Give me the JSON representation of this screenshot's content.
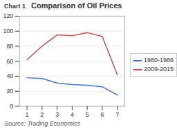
{
  "chart_data": {
    "type": "line",
    "title": "Comparison of Oil Prices",
    "annotations": [
      "Chart 1",
      "Source: Trading Economics"
    ],
    "x": [
      1,
      2,
      3,
      4,
      5,
      6,
      7
    ],
    "series": [
      {
        "name": "1980-1986",
        "color": "#4472C4",
        "values": [
          38,
          37,
          31,
          29,
          28,
          26,
          15
        ]
      },
      {
        "name": "2009-2015",
        "color": "#C0504D",
        "values": [
          62,
          80,
          95,
          94,
          98,
          93,
          42
        ]
      }
    ],
    "xlim": [
      0.5,
      7.5
    ],
    "xticks": [
      1,
      2,
      3,
      4,
      5,
      6,
      7
    ],
    "ylim": [
      0,
      120
    ],
    "yticks": [
      0,
      20,
      40,
      60,
      80,
      100,
      120
    ],
    "grid": true,
    "legend": "right"
  }
}
